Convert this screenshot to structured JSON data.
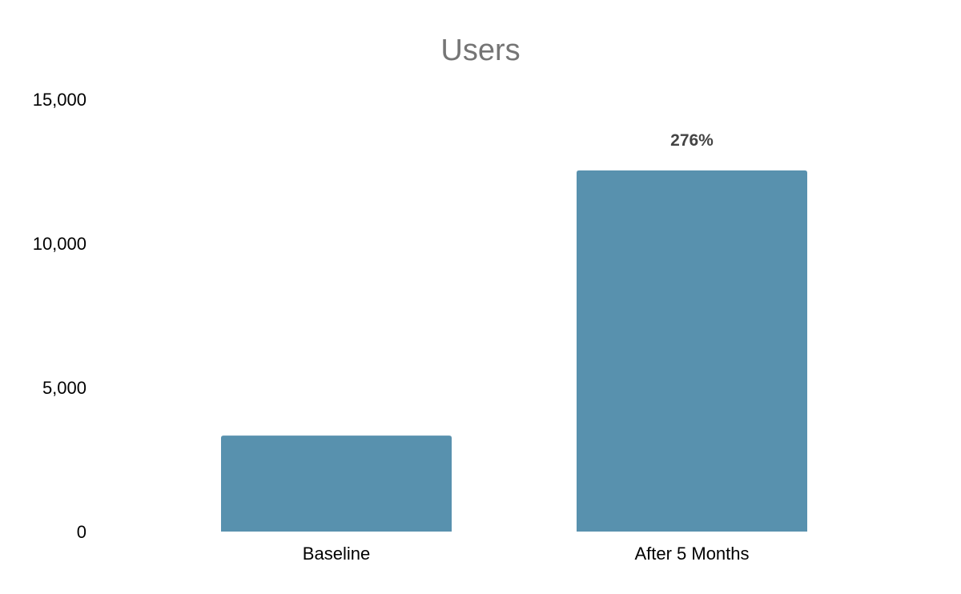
{
  "chart_data": {
    "type": "bar",
    "title": "Users",
    "categories": [
      "Baseline",
      "After 5 Months"
    ],
    "values": [
      3330,
      12530
    ],
    "data_labels": [
      "",
      "276%"
    ],
    "ylim": [
      0,
      15000
    ],
    "yticks": [
      0,
      5000,
      10000,
      15000
    ],
    "ytick_labels": [
      "0",
      "5,000",
      "10,000",
      "15,000"
    ],
    "xlabel": "",
    "ylabel": "",
    "grid": false,
    "legend": "none",
    "bar_color": "#5891AE"
  }
}
